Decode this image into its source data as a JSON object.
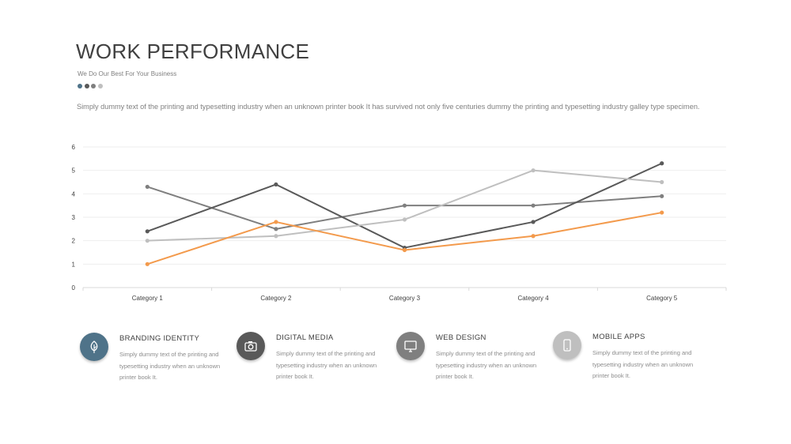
{
  "header": {
    "title": "WORK PERFORMANCE",
    "subtitle": "We Do Our Best For Your Business",
    "dot_colors": [
      "#4f7389",
      "#595959",
      "#7f7f7f",
      "#bfbfbf"
    ],
    "description": "Simply dummy text of the printing and typesetting industry when an unknown printer book It has survived not only five centuries dummy  the printing and typesetting industry galley type specimen."
  },
  "chart_data": {
    "type": "line",
    "categories": [
      "Category 1",
      "Category 2",
      "Category 3",
      "Category 4",
      "Category 5"
    ],
    "ylim": [
      0,
      6
    ],
    "yticks": [
      "0",
      "1",
      "2",
      "3",
      "4",
      "5",
      "6"
    ],
    "grid": true,
    "legend": "none",
    "series": [
      {
        "color": "#7f7f7f",
        "values": [
          4.3,
          2.5,
          3.5,
          3.5,
          3.9
        ]
      },
      {
        "color": "#595959",
        "values": [
          2.4,
          4.4,
          1.7,
          2.8,
          5.3
        ]
      },
      {
        "color": "#bfbfbf",
        "values": [
          2.0,
          2.2,
          2.9,
          5.0,
          4.5
        ]
      },
      {
        "color": "#f39a4c",
        "values": [
          1.0,
          2.8,
          1.6,
          2.2,
          3.2
        ]
      }
    ]
  },
  "features": [
    {
      "title": "BRANDING  IDENTITY",
      "text": "Simply  dummy text of the printing and typesetting  industry when an unknown printer book It.",
      "icon": "leaf-icon",
      "color": "#4f7389"
    },
    {
      "title": "DIGITAL MEDIA",
      "text": "Simply  dummy text of the printing and typesetting  industry when an unknown printer book It.",
      "icon": "camera-icon",
      "color": "#595959"
    },
    {
      "title": "WEB DESIGN",
      "text": "Simply  dummy text of the printing and typesetting  industry when an unknown printer book It.",
      "icon": "monitor-icon",
      "color": "#7f7f7f"
    },
    {
      "title": "MOBILE APPS",
      "text": "Simply  dummy text of the printing and typesetting  industry when an unknown printer book It.",
      "icon": "mobile-icon",
      "color": "#bfbfbf"
    }
  ]
}
